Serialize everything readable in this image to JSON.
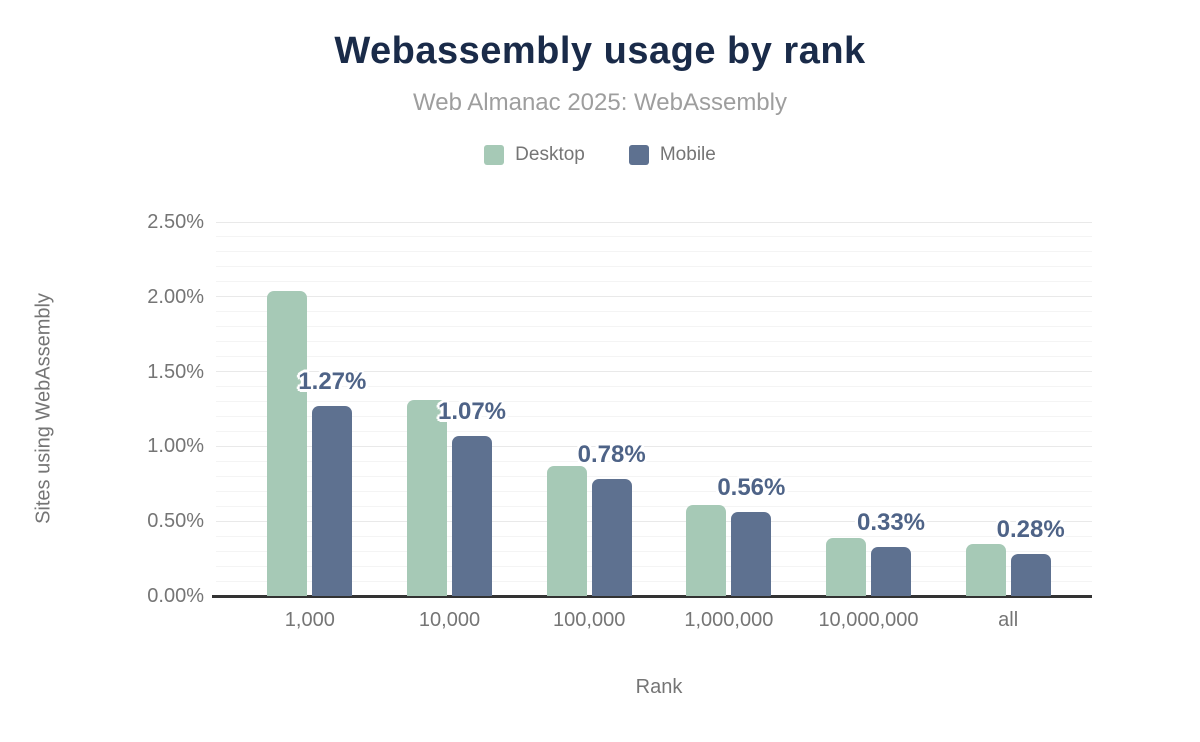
{
  "header": {
    "title": "Webassembly usage by rank",
    "subtitle": "Web Almanac 2025: WebAssembly"
  },
  "legend": {
    "items": [
      {
        "label": "Desktop",
        "color": "#a6c9b6"
      },
      {
        "label": "Mobile",
        "color": "#5e7190"
      }
    ]
  },
  "chart_data": {
    "type": "bar",
    "title": "Webassembly usage by rank",
    "subtitle": "Web Almanac 2025: WebAssembly",
    "categories": [
      "1,000",
      "10,000",
      "100,000",
      "1,000,000",
      "10,000,000",
      "all"
    ],
    "series": [
      {
        "name": "Desktop",
        "color": "#a6c9b6",
        "values": [
          2.04,
          1.31,
          0.87,
          0.61,
          0.39,
          0.35
        ]
      },
      {
        "name": "Mobile",
        "color": "#5e7190",
        "values": [
          1.27,
          1.07,
          0.78,
          0.56,
          0.33,
          0.28
        ]
      }
    ],
    "data_labels": [
      "1.27%",
      "1.07%",
      "0.78%",
      "0.56%",
      "0.33%",
      "0.28%"
    ],
    "data_label_series": "Mobile",
    "xlabel": "Rank",
    "ylabel": "Sites using WebAssembly",
    "ylim": [
      0,
      2.5
    ],
    "yticks": [
      {
        "value": 0.0,
        "label": "0.00%"
      },
      {
        "value": 0.5,
        "label": "0.50%"
      },
      {
        "value": 1.0,
        "label": "1.00%"
      },
      {
        "value": 1.5,
        "label": "1.50%"
      },
      {
        "value": 2.0,
        "label": "2.00%"
      },
      {
        "value": 2.5,
        "label": "2.50%"
      }
    ],
    "grid": {
      "major_step": 0.5,
      "minor_step": 0.1,
      "legend_position": "top"
    },
    "colors": {
      "title": "#1a2b49",
      "subtitle": "#9e9e9e",
      "axis_text": "#757575",
      "data_label": "#4e6387",
      "axis_line": "#333333",
      "grid_major": "#e9e9e9",
      "grid_minor": "#f4f4f4"
    }
  }
}
